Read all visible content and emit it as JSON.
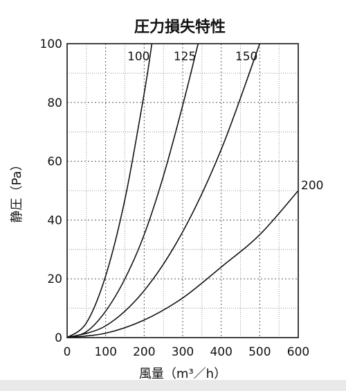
{
  "chart_data": {
    "type": "line",
    "title": "圧力損失特性",
    "xlabel": "風量（m³／h）",
    "ylabel": "静圧（Pa）",
    "xlim": [
      0,
      600
    ],
    "ylim": [
      0,
      100
    ],
    "x_ticks": [
      "0",
      "100",
      "200",
      "300",
      "400",
      "500",
      "600"
    ],
    "y_ticks": [
      "0",
      "20",
      "40",
      "60",
      "80",
      "100"
    ],
    "grid": true,
    "series": [
      {
        "name": "100",
        "x": [
          0,
          50,
          100,
          150,
          200,
          220
        ],
        "y": [
          0,
          5,
          21,
          47,
          83,
          100
        ]
      },
      {
        "name": "125",
        "x": [
          0,
          50,
          100,
          150,
          200,
          250,
          300,
          340
        ],
        "y": [
          0,
          2,
          9,
          20,
          35,
          55,
          79,
          100
        ]
      },
      {
        "name": "150",
        "x": [
          0,
          100,
          200,
          300,
          400,
          500
        ],
        "y": [
          0,
          4,
          16,
          36,
          64,
          100
        ]
      },
      {
        "name": "200",
        "x": [
          0,
          100,
          200,
          300,
          400,
          500,
          600
        ],
        "y": [
          0,
          1.5,
          6,
          13.5,
          24,
          35,
          50
        ]
      }
    ]
  }
}
